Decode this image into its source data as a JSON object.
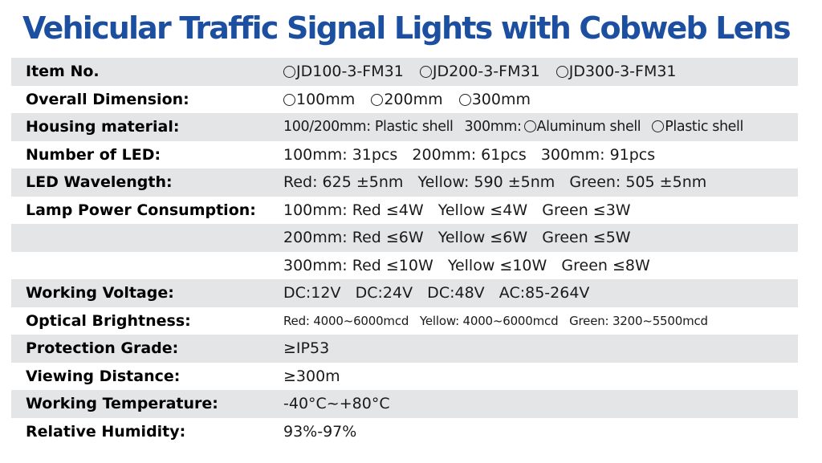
{
  "title": "Vehicular Traffic Signal Lights with Cobweb Lens",
  "colors": {
    "title": "#1c4fa0",
    "row_shade": "#e4e5e7",
    "text": "#1a1a1a"
  },
  "rows": [
    {
      "label": "Item No.",
      "options": [
        "JD100-3-FM31",
        "JD200-3-FM31",
        "JD300-3-FM31"
      ]
    },
    {
      "label": "Overall Dimension:",
      "options": [
        "100mm",
        "200mm",
        "300mm"
      ]
    },
    {
      "label": "Housing material:",
      "prefix_1": "100/200mm: Plastic shell",
      "prefix_2": "300mm:",
      "options": [
        "Aluminum shell",
        "Plastic shell"
      ]
    },
    {
      "label": "Number of LED:",
      "value": "100mm: 31pcs   200mm: 61pcs   300mm: 91pcs"
    },
    {
      "label": "LED Wavelength:",
      "value": "Red: 625 ±5nm   Yellow: 590 ±5nm   Green: 505 ±5nm"
    },
    {
      "label": "Lamp Power Consumption:",
      "value": "100mm: Red ≤4W   Yellow ≤4W   Green ≤3W"
    },
    {
      "label": "",
      "value": "200mm: Red ≤6W   Yellow ≤6W   Green ≤5W"
    },
    {
      "label": "",
      "value": "300mm: Red ≤10W   Yellow ≤10W   Green ≤8W"
    },
    {
      "label": "Working Voltage:",
      "value": "DC:12V   DC:24V   DC:48V   AC:85-264V"
    },
    {
      "label": "Optical Brightness:",
      "value": "Red: 4000~6000mcd   Yellow: 4000~6000mcd   Green: 3200~5500mcd"
    },
    {
      "label": "Protection Grade:",
      "value": "≥IP53"
    },
    {
      "label": "Viewing Distance:",
      "value": "≥300m"
    },
    {
      "label": "Working Temperature:",
      "value": "-40°C~+80°C"
    },
    {
      "label": "Relative Humidity:",
      "value": "93%-97%"
    }
  ]
}
